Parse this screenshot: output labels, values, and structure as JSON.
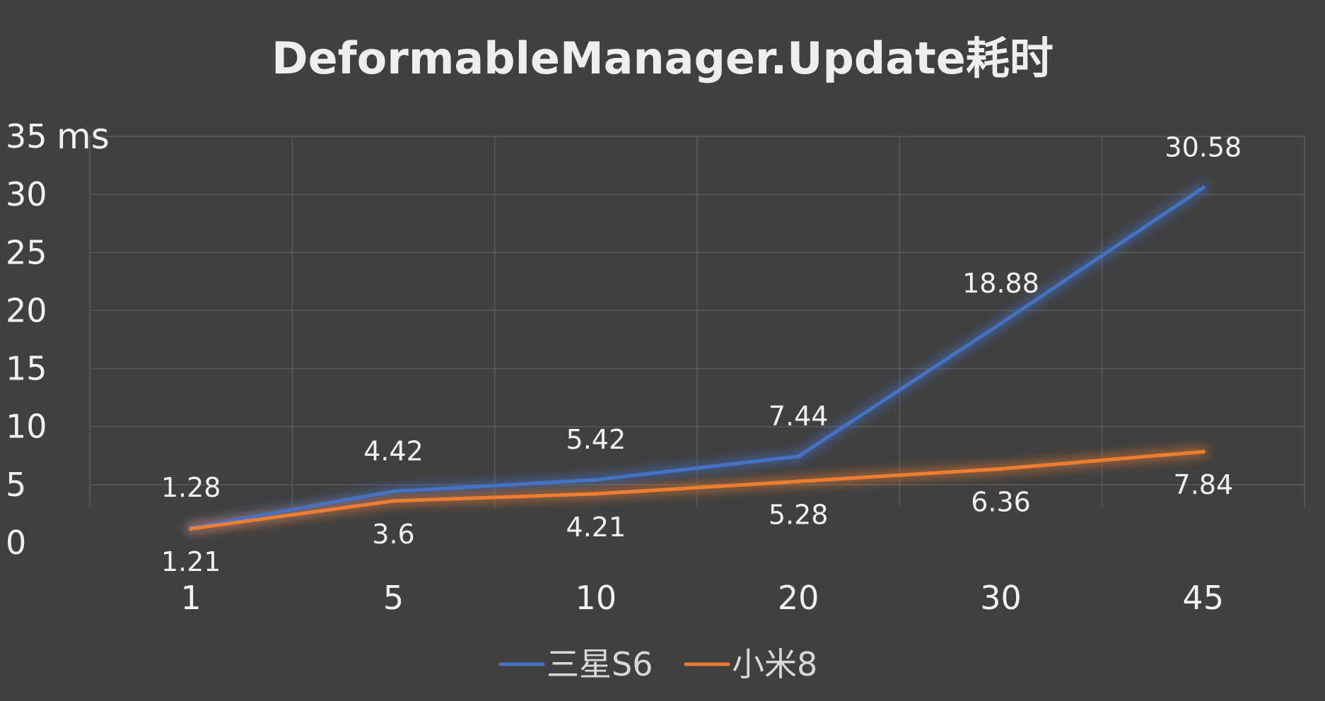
{
  "chart_data": {
    "type": "line",
    "title": "DeformableManager.Update耗时",
    "ylabel": "ms",
    "xlabel": "",
    "categories": [
      "1",
      "5",
      "10",
      "20",
      "30",
      "45"
    ],
    "ylim": [
      0,
      35
    ],
    "yticks": [
      0,
      5,
      10,
      15,
      20,
      25,
      30,
      35
    ],
    "grid": true,
    "legend": "bottom-center",
    "series": [
      {
        "name": "三星S6",
        "color": "#4472c4",
        "values": [
          1.28,
          4.42,
          5.42,
          7.44,
          18.88,
          30.58
        ],
        "labels": [
          "1.28",
          "4.42",
          "5.42",
          "7.44",
          "18.88",
          "30.58"
        ],
        "label_position": "above"
      },
      {
        "name": "小米8",
        "color": "#ed7d31",
        "values": [
          1.21,
          3.6,
          4.21,
          5.28,
          6.36,
          7.84
        ],
        "labels": [
          "1.21",
          "3.6",
          "4.21",
          "5.28",
          "6.36",
          "7.84"
        ],
        "label_position": "below"
      }
    ]
  }
}
